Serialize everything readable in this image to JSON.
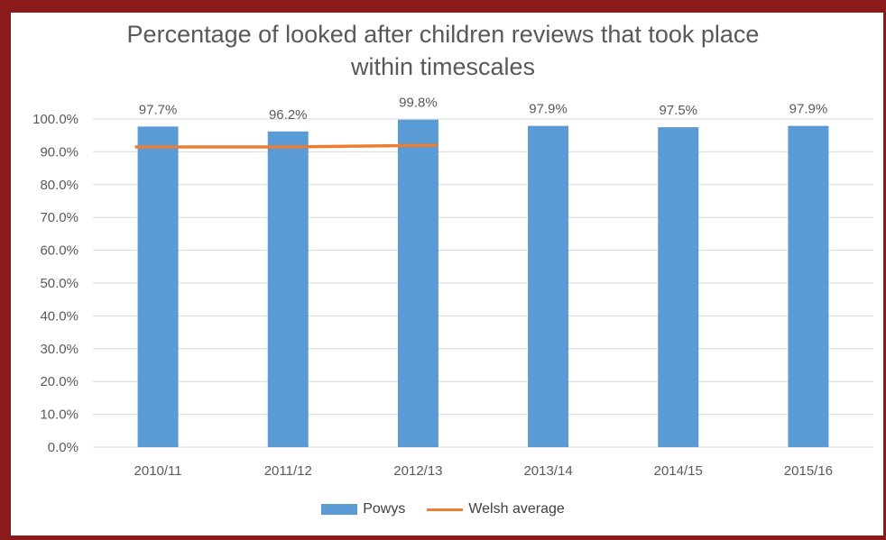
{
  "colors": {
    "frame": "#8b1a1a",
    "bar": "#5b9bd5",
    "line": "#ed7d31",
    "grid": "#d9d9d9",
    "text": "#595959"
  },
  "chart_data": {
    "type": "bar",
    "title_lines": [
      "Percentage of looked after children reviews that took place",
      "within timescales"
    ],
    "categories": [
      "2010/11",
      "2011/12",
      "2012/13",
      "2013/14",
      "2014/15",
      "2015/16"
    ],
    "series": [
      {
        "name": "Powys",
        "type": "bar",
        "values": [
          97.7,
          96.2,
          99.8,
          97.9,
          97.5,
          97.9
        ],
        "labels": [
          "97.7%",
          "96.2%",
          "99.8%",
          "97.9%",
          "97.5%",
          "97.9%"
        ]
      },
      {
        "name": "Welsh average",
        "type": "line",
        "values": [
          91.5,
          91.5,
          92.0,
          null,
          null,
          null
        ]
      }
    ],
    "ylim": [
      0,
      100
    ],
    "yticks": [
      "0.0%",
      "10.0%",
      "20.0%",
      "30.0%",
      "40.0%",
      "50.0%",
      "60.0%",
      "70.0%",
      "80.0%",
      "90.0%",
      "100.0%"
    ],
    "grid": true,
    "legend_position": "bottom"
  }
}
